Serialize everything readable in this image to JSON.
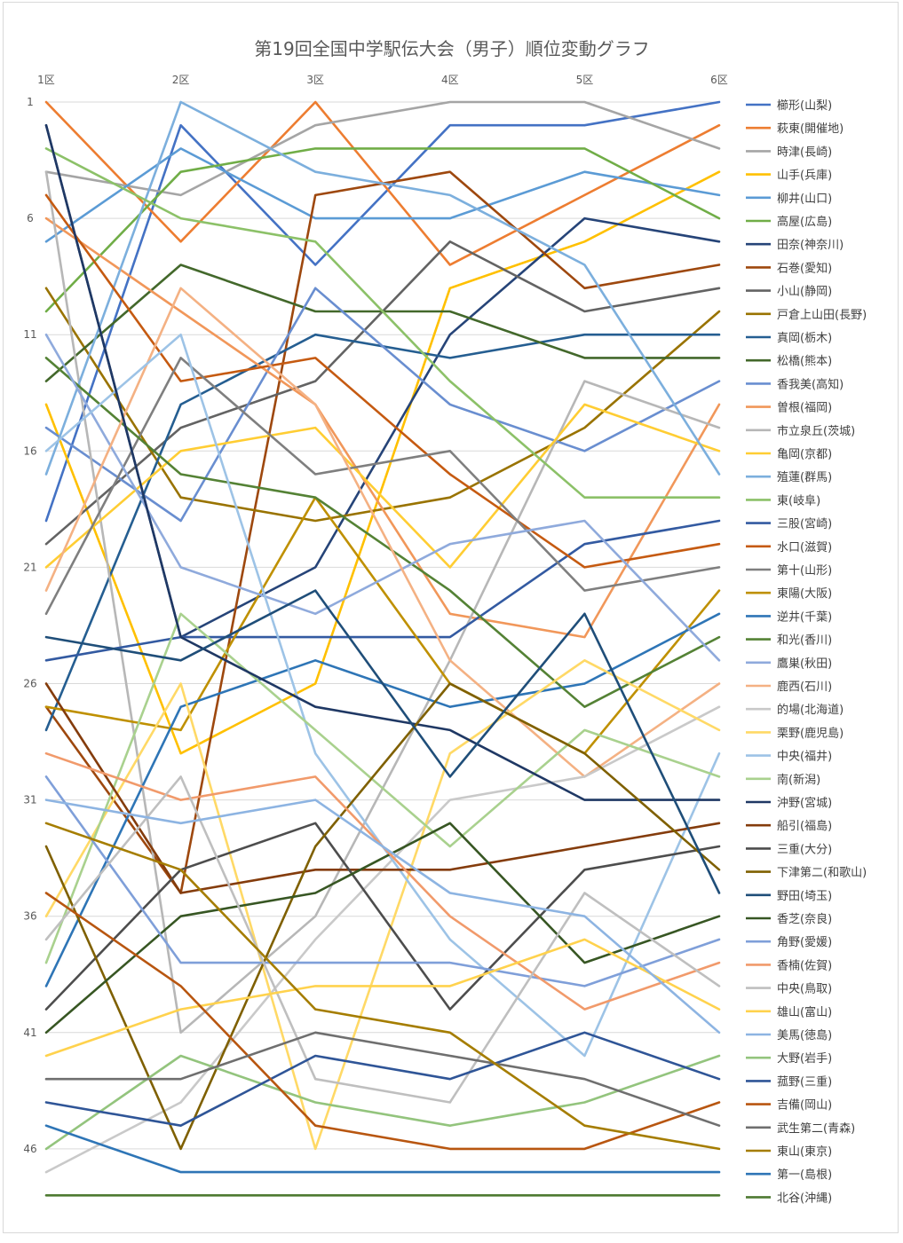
{
  "chart_data": {
    "type": "line",
    "title": "第19回全国中学駅伝大会（男子）順位変動グラフ",
    "categories": [
      "1区",
      "2区",
      "3区",
      "4区",
      "5区",
      "6区"
    ],
    "y_ticks": [
      "1",
      "6",
      "11",
      "16",
      "21",
      "26",
      "31",
      "36",
      "41",
      "46"
    ],
    "ylim": [
      1,
      48
    ],
    "y_reversed": true,
    "grid": "horizontal",
    "legend_position": "right",
    "series": [
      {
        "name": "櫛形(山梨)",
        "color": "#4472C4",
        "values": [
          19,
          2,
          8,
          2,
          2,
          1
        ]
      },
      {
        "name": "萩東(開催地)",
        "color": "#ED7D31",
        "values": [
          1,
          7,
          1,
          8,
          5,
          2
        ]
      },
      {
        "name": "時津(長崎)",
        "color": "#A5A5A5",
        "values": [
          4,
          5,
          2,
          1,
          1,
          3
        ]
      },
      {
        "name": "山手(兵庫)",
        "color": "#FFC000",
        "values": [
          14,
          29,
          26,
          9,
          7,
          4
        ]
      },
      {
        "name": "柳井(山口)",
        "color": "#5B9BD5",
        "values": [
          7,
          3,
          6,
          6,
          4,
          5
        ]
      },
      {
        "name": "高屋(広島)",
        "color": "#70AD47",
        "values": [
          10,
          4,
          3,
          3,
          3,
          6
        ]
      },
      {
        "name": "田奈(神奈川)",
        "color": "#264478",
        "values": [
          2,
          24,
          21,
          11,
          6,
          7
        ]
      },
      {
        "name": "石巻(愛知)",
        "color": "#9E480E",
        "values": [
          27,
          35,
          5,
          4,
          9,
          8
        ]
      },
      {
        "name": "小山(静岡)",
        "color": "#636363",
        "values": [
          20,
          15,
          13,
          7,
          10,
          9
        ]
      },
      {
        "name": "戸倉上山田(長野)",
        "color": "#997300",
        "values": [
          9,
          18,
          19,
          18,
          15,
          10
        ]
      },
      {
        "name": "真岡(栃木)",
        "color": "#255E91",
        "values": [
          28,
          14,
          11,
          12,
          11,
          11
        ]
      },
      {
        "name": "松橋(熊本)",
        "color": "#43682B",
        "values": [
          13,
          8,
          10,
          10,
          12,
          12
        ]
      },
      {
        "name": "香我美(高知)",
        "color": "#698ED0",
        "values": [
          15,
          19,
          9,
          14,
          16,
          13
        ]
      },
      {
        "name": "曽根(福岡)",
        "color": "#F1975A",
        "values": [
          6,
          10,
          14,
          23,
          24,
          14
        ]
      },
      {
        "name": "市立泉丘(茨城)",
        "color": "#B7B7B7",
        "values": [
          4,
          41,
          36,
          25,
          13,
          15
        ]
      },
      {
        "name": "亀岡(京都)",
        "color": "#FFCD33",
        "values": [
          21,
          16,
          15,
          21,
          14,
          16
        ]
      },
      {
        "name": "殖蓮(群馬)",
        "color": "#7CAFDD",
        "values": [
          17,
          1,
          4,
          5,
          8,
          17
        ]
      },
      {
        "name": "東(岐阜)",
        "color": "#8CC168",
        "values": [
          3,
          6,
          7,
          13,
          18,
          18
        ]
      },
      {
        "name": "三股(宮崎)",
        "color": "#335AA1",
        "values": [
          25,
          24,
          24,
          24,
          20,
          19
        ]
      },
      {
        "name": "水口(滋賀)",
        "color": "#C55A11",
        "values": [
          5,
          13,
          12,
          17,
          21,
          20
        ]
      },
      {
        "name": "第十(山形)",
        "color": "#7F7F7F",
        "values": [
          23,
          12,
          17,
          16,
          22,
          21
        ]
      },
      {
        "name": "東陽(大阪)",
        "color": "#BF9000",
        "values": [
          27,
          28,
          18,
          26,
          29,
          22
        ]
      },
      {
        "name": "逆井(千葉)",
        "color": "#2E75B6",
        "values": [
          39,
          27,
          25,
          27,
          26,
          23
        ]
      },
      {
        "name": "和光(香川)",
        "color": "#548235",
        "values": [
          12,
          17,
          18,
          22,
          27,
          24
        ]
      },
      {
        "name": "鷹巣(秋田)",
        "color": "#8FAADC",
        "values": [
          11,
          21,
          23,
          20,
          19,
          25
        ]
      },
      {
        "name": "鹿西(石川)",
        "color": "#F4B183",
        "values": [
          22,
          9,
          14,
          25,
          30,
          26
        ]
      },
      {
        "name": "的場(北海道)",
        "color": "#C9C9C9",
        "values": [
          47,
          44,
          37,
          31,
          30,
          27
        ]
      },
      {
        "name": "栗野(鹿児島)",
        "color": "#FFD966",
        "values": [
          36,
          26,
          46,
          29,
          25,
          28
        ]
      },
      {
        "name": "中央(福井)",
        "color": "#9DC3E6",
        "values": [
          16,
          11,
          29,
          37,
          42,
          29
        ]
      },
      {
        "name": "南(新潟)",
        "color": "#A9D18E",
        "values": [
          38,
          23,
          28,
          33,
          28,
          30
        ]
      },
      {
        "name": "沖野(宮城)",
        "color": "#1F3864",
        "values": [
          2,
          24,
          27,
          28,
          31,
          31
        ]
      },
      {
        "name": "船引(福島)",
        "color": "#843C0C",
        "values": [
          26,
          35,
          34,
          34,
          33,
          32
        ]
      },
      {
        "name": "三重(大分)",
        "color": "#4D4D4D",
        "values": [
          40,
          34,
          32,
          40,
          34,
          33
        ]
      },
      {
        "name": "下津第二(和歌山)",
        "color": "#7F6000",
        "values": [
          33,
          46,
          33,
          26,
          29,
          34
        ]
      },
      {
        "name": "野田(埼玉)",
        "color": "#1F4E79",
        "values": [
          24,
          25,
          22,
          30,
          23,
          35
        ]
      },
      {
        "name": "香芝(奈良)",
        "color": "#375623",
        "values": [
          41,
          36,
          35,
          32,
          38,
          36
        ]
      },
      {
        "name": "角野(愛媛)",
        "color": "#7F9FD9",
        "values": [
          30,
          38,
          38,
          38,
          39,
          37
        ]
      },
      {
        "name": "香楠(佐賀)",
        "color": "#F19A6B",
        "values": [
          29,
          31,
          30,
          36,
          40,
          38
        ]
      },
      {
        "name": "中央(鳥取)",
        "color": "#BFBFBF",
        "values": [
          37,
          30,
          43,
          44,
          35,
          39
        ]
      },
      {
        "name": "雄山(富山)",
        "color": "#FFD24D",
        "values": [
          42,
          40,
          39,
          39,
          37,
          40
        ]
      },
      {
        "name": "美馬(徳島)",
        "color": "#8DB4E2",
        "values": [
          31,
          32,
          31,
          35,
          36,
          41
        ]
      },
      {
        "name": "大野(岩手)",
        "color": "#93C47D",
        "values": [
          46,
          42,
          44,
          45,
          44,
          42
        ]
      },
      {
        "name": "菰野(三重)",
        "color": "#2F5597",
        "values": [
          44,
          45,
          42,
          43,
          41,
          43
        ]
      },
      {
        "name": "吉備(岡山)",
        "color": "#B85610",
        "values": [
          35,
          39,
          45,
          46,
          46,
          44
        ]
      },
      {
        "name": "武生第二(青森)",
        "color": "#6F6F6F",
        "values": [
          43,
          43,
          41,
          42,
          43,
          45
        ]
      },
      {
        "name": "東山(東京)",
        "color": "#A57D00",
        "values": [
          32,
          34,
          40,
          41,
          45,
          46
        ]
      },
      {
        "name": "第一(島根)",
        "color": "#2E75B6",
        "values": [
          45,
          47,
          47,
          47,
          47,
          47
        ]
      },
      {
        "name": "北谷(沖縄)",
        "color": "#4E7A32",
        "values": [
          48,
          48,
          48,
          48,
          48,
          48
        ]
      }
    ]
  }
}
